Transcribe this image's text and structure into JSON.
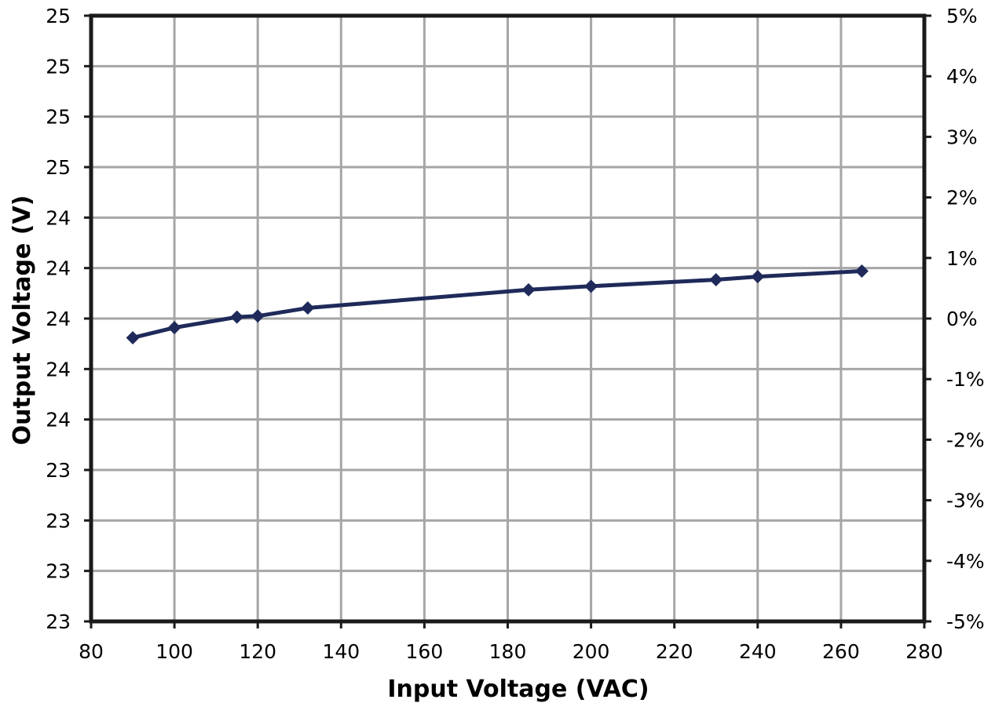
{
  "chart_data": {
    "type": "line",
    "title": "",
    "xlabel": "Input Voltage (VAC)",
    "ylabel": "Output Voltage (V)",
    "xlim": [
      80,
      280
    ],
    "x_ticks": [
      "80",
      "100",
      "120",
      "140",
      "160",
      "180",
      "200",
      "220",
      "240",
      "260",
      "280"
    ],
    "ylim": [
      23.4,
      24.6
    ],
    "y_ticks": [
      "23",
      "23",
      "23",
      "23",
      "24",
      "24",
      "24",
      "24",
      "24",
      "25",
      "25",
      "25",
      "25"
    ],
    "y2lim": [
      -5,
      5
    ],
    "y2_ticks": [
      "-5%",
      "-4%",
      "-3%",
      "-2%",
      "-1%",
      "0%",
      "1%",
      "2%",
      "3%",
      "4%",
      "5%"
    ],
    "grid": true,
    "legend": "none",
    "series": [
      {
        "color": "#1f2a5a",
        "marker": "diamond",
        "x": [
          90,
          100,
          115,
          120,
          132,
          185,
          200,
          230,
          240,
          265
        ],
        "y": [
          23.962,
          23.982,
          24.003,
          24.005,
          24.021,
          24.057,
          24.064,
          24.077,
          24.083,
          24.094
        ]
      }
    ]
  }
}
